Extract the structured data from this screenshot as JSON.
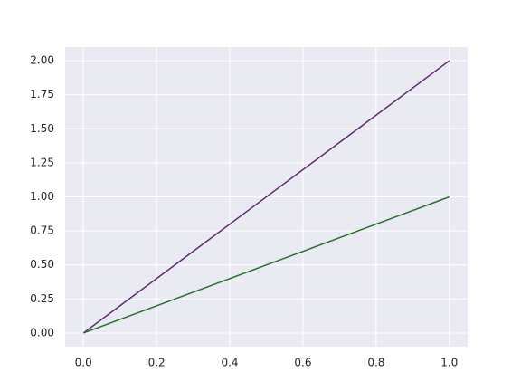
{
  "chart_data": {
    "type": "line",
    "x": [
      0,
      1
    ],
    "series": [
      {
        "color": "#5b2a6e",
        "values": [
          0,
          2
        ]
      },
      {
        "color": "#2e7031",
        "values": [
          0,
          1
        ]
      }
    ],
    "xlim": [
      -0.05,
      1.05
    ],
    "ylim": [
      -0.1,
      2.1
    ],
    "xticks": [
      {
        "value": 0,
        "label": "0.0"
      },
      0.2,
      0.4,
      0.6,
      0.8,
      {
        "value": 1,
        "label": "1.0"
      }
    ],
    "yticks": [
      {
        "value": 0,
        "label": "0.00"
      },
      0.25,
      {
        "value": 0.5,
        "label": "0.50"
      },
      0.75,
      {
        "value": 1,
        "label": "1.00"
      },
      1.25,
      {
        "value": 1.5,
        "label": "1.50"
      },
      1.75,
      {
        "value": 2,
        "label": "2.00"
      }
    ],
    "grid": true,
    "background": "#eaeaf2"
  }
}
